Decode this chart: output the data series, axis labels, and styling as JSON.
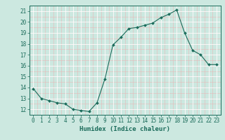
{
  "x": [
    0,
    1,
    2,
    3,
    4,
    5,
    6,
    7,
    8,
    9,
    10,
    11,
    12,
    13,
    14,
    15,
    16,
    17,
    18,
    19,
    20,
    21,
    22,
    23
  ],
  "y": [
    13.9,
    13.0,
    12.8,
    12.6,
    12.5,
    12.0,
    11.9,
    11.8,
    12.6,
    14.8,
    17.9,
    18.6,
    19.4,
    19.5,
    19.7,
    19.9,
    20.4,
    20.7,
    21.1,
    19.0,
    17.4,
    17.0,
    16.1,
    16.1
  ],
  "line_color": "#1a6b5a",
  "marker": "D",
  "marker_size": 2.0,
  "bg_color": "#cce8e0",
  "grid_major_color": "#ffffff",
  "grid_minor_color": "#e8b8b8",
  "xlabel": "Humidex (Indice chaleur)",
  "ylim": [
    11.5,
    21.5
  ],
  "xlim": [
    -0.5,
    23.5
  ],
  "yticks": [
    12,
    13,
    14,
    15,
    16,
    17,
    18,
    19,
    20,
    21
  ],
  "xticks": [
    0,
    1,
    2,
    3,
    4,
    5,
    6,
    7,
    8,
    9,
    10,
    11,
    12,
    13,
    14,
    15,
    16,
    17,
    18,
    19,
    20,
    21,
    22,
    23
  ],
  "tick_fontsize": 5.5,
  "xlabel_fontsize": 6.5,
  "tick_color": "#1a6b5a",
  "xlabel_color": "#1a6b5a",
  "spine_color": "#1a6b5a"
}
